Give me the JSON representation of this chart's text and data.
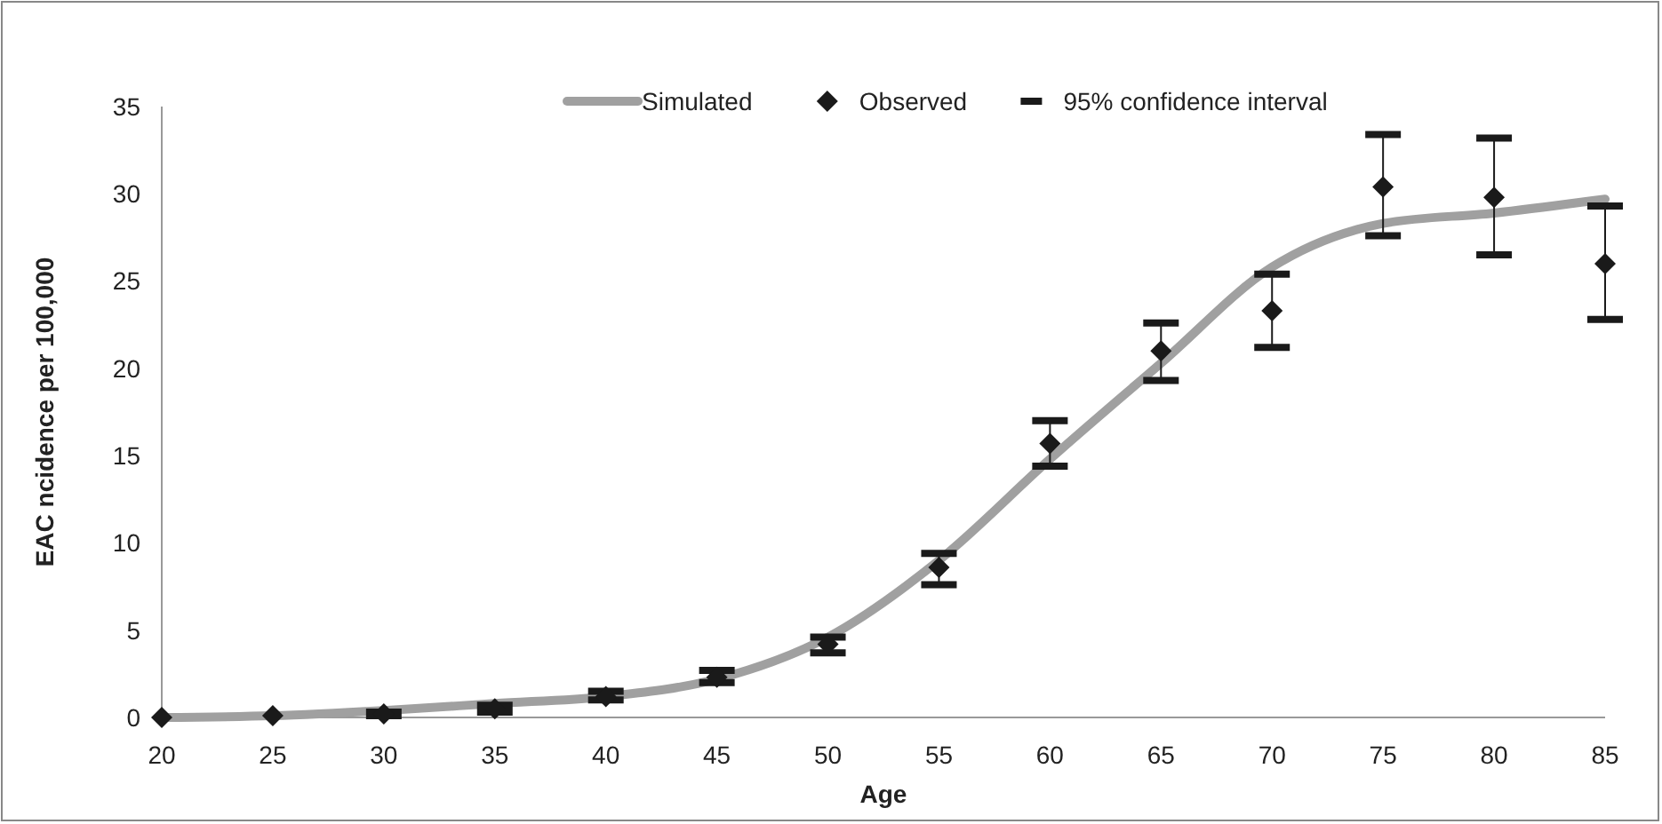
{
  "chart_data": {
    "type": "scatter",
    "xlabel": "Age",
    "ylabel": "EAC ncidence per 100,000",
    "x": [
      20,
      25,
      30,
      35,
      40,
      45,
      50,
      55,
      60,
      65,
      70,
      75,
      80,
      85
    ],
    "xlim": [
      20,
      85
    ],
    "xticks": [
      20,
      25,
      30,
      35,
      40,
      45,
      50,
      55,
      60,
      65,
      70,
      75,
      80,
      85
    ],
    "ylim": [
      0,
      35
    ],
    "yticks": [
      0,
      5,
      10,
      15,
      20,
      25,
      30,
      35
    ],
    "grid": false,
    "legend": "top",
    "annotations": [
      "95% confidence interval"
    ],
    "series": [
      {
        "name": "Simulated",
        "type": "line",
        "color": "#a0a0a0",
        "marker": "none",
        "line_style": "solid",
        "values": [
          0,
          0.1,
          0.4,
          0.8,
          1.2,
          2.2,
          4.6,
          9,
          14.8,
          20.3,
          25.8,
          28.3,
          28.9,
          29.7
        ]
      },
      {
        "name": "Observed",
        "color": "#1a1a1a",
        "marker": "diamond",
        "values": [
          0,
          0.1,
          0.2,
          0.5,
          1.2,
          2.3,
          4.2,
          8.6,
          15.7,
          21,
          23.3,
          30.4,
          29.8,
          26
        ],
        "errors": [
          null,
          null,
          [
            0.1,
            0.3
          ],
          [
            0.3,
            0.7
          ],
          [
            1,
            1.5
          ],
          [
            2,
            2.7
          ],
          [
            3.7,
            4.6
          ],
          [
            7.6,
            9.4
          ],
          [
            14.4,
            17
          ],
          [
            19.3,
            22.6
          ],
          [
            21.2,
            25.4
          ],
          [
            27.6,
            33.4
          ],
          [
            26.5,
            33.2
          ],
          [
            22.8,
            29.3
          ]
        ]
      }
    ]
  }
}
